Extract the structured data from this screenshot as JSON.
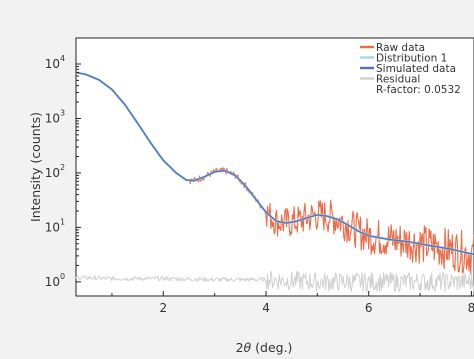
{
  "chart_data": {
    "type": "line",
    "title": "",
    "xlabel_symbol": "θ",
    "xlabel": "2θ (deg.)",
    "xlabel_prefix": "2",
    "xlabel_suffix": " (deg.)",
    "ylabel": "Intensity (counts)",
    "xlim": [
      0.3,
      8.05
    ],
    "ylim": [
      0.55,
      30000
    ],
    "yscale": "log",
    "grid": false,
    "legend_position": "top-right",
    "x_ticks": [
      2,
      4,
      6,
      8
    ],
    "x_tick_labels": [
      "2",
      "4",
      "6",
      "8"
    ],
    "y_ticks": [
      1,
      10,
      100,
      1000,
      10000
    ],
    "y_tick_bases": [
      "10",
      "10",
      "10",
      "10",
      "10"
    ],
    "y_tick_exponents": [
      "0",
      "1",
      "2",
      "3",
      "4"
    ],
    "annotation": "R-factor: 0.0532",
    "series": [
      {
        "name": "Raw data",
        "color": "#ee6a45",
        "x": [
          0.3,
          0.5,
          0.75,
          1.0,
          1.25,
          1.5,
          1.75,
          2.0,
          2.25,
          2.45,
          2.6,
          2.8,
          3.0,
          3.2,
          3.4,
          3.6,
          3.8,
          4.0,
          4.2,
          4.4,
          4.6,
          4.8,
          5.0,
          5.2,
          5.4,
          5.6,
          5.8,
          6.0,
          6.2,
          6.4,
          6.6,
          6.8,
          7.0,
          7.2,
          7.4,
          7.6,
          7.8,
          8.05
        ],
        "values": [
          7000,
          6400,
          5100,
          3400,
          1800,
          820,
          360,
          170,
          100,
          74,
          72,
          85,
          105,
          110,
          90,
          58,
          33,
          19,
          13,
          12,
          13,
          15,
          17,
          16,
          14,
          11,
          8.5,
          7,
          6.5,
          6,
          5.7,
          5.4,
          5,
          4.6,
          4.3,
          4,
          3.6,
          3.2
        ]
      },
      {
        "name": "Distribution 1",
        "color": "#9fd7ee",
        "x": [
          0.3,
          0.5,
          0.75,
          1.0,
          1.25,
          1.5,
          1.75,
          2.0,
          2.25,
          2.45,
          2.6,
          2.8,
          3.0,
          3.2,
          3.4,
          3.6,
          3.8,
          4.0,
          4.2,
          4.4,
          4.6,
          4.8,
          5.0,
          5.2,
          5.4,
          5.6,
          5.8,
          6.0,
          6.2,
          6.4,
          6.6,
          6.8,
          7.0,
          7.2,
          7.4,
          7.6,
          7.8,
          8.05
        ],
        "values": [
          7000,
          6400,
          5100,
          3400,
          1800,
          820,
          360,
          170,
          100,
          74,
          72,
          85,
          105,
          110,
          90,
          58,
          33,
          19,
          13,
          12,
          13,
          15,
          17,
          16,
          14,
          11,
          8.5,
          7,
          6.5,
          6,
          5.7,
          5.4,
          5,
          4.6,
          4.3,
          4,
          3.6,
          3.2
        ]
      },
      {
        "name": "Simulated data",
        "color": "#5a6fb3",
        "x": [
          0.3,
          0.5,
          0.75,
          1.0,
          1.25,
          1.5,
          1.75,
          2.0,
          2.25,
          2.45,
          2.6,
          2.8,
          3.0,
          3.2,
          3.4,
          3.6,
          3.8,
          4.0,
          4.2,
          4.4,
          4.6,
          4.8,
          5.0,
          5.2,
          5.4,
          5.6,
          5.8,
          6.0,
          6.2,
          6.4,
          6.6,
          6.8,
          7.0,
          7.2,
          7.4,
          7.6,
          7.8,
          8.05
        ],
        "values": [
          7000,
          6400,
          5100,
          3400,
          1800,
          820,
          360,
          170,
          100,
          74,
          72,
          85,
          105,
          110,
          90,
          58,
          33,
          19,
          13,
          12,
          13,
          15,
          17,
          16,
          14,
          11,
          8.5,
          7,
          6.5,
          6,
          5.7,
          5.4,
          5,
          4.6,
          4.3,
          4,
          3.6,
          3.2
        ]
      },
      {
        "name": "Residual",
        "color": "#d0d0d0",
        "x": [
          0.3,
          1.0,
          2.0,
          3.0,
          4.0,
          5.0,
          6.0,
          7.0,
          8.05
        ],
        "values": [
          1.2,
          1.15,
          1.15,
          1.1,
          1.1,
          1.0,
          1.0,
          1.0,
          1.0
        ]
      }
    ]
  }
}
